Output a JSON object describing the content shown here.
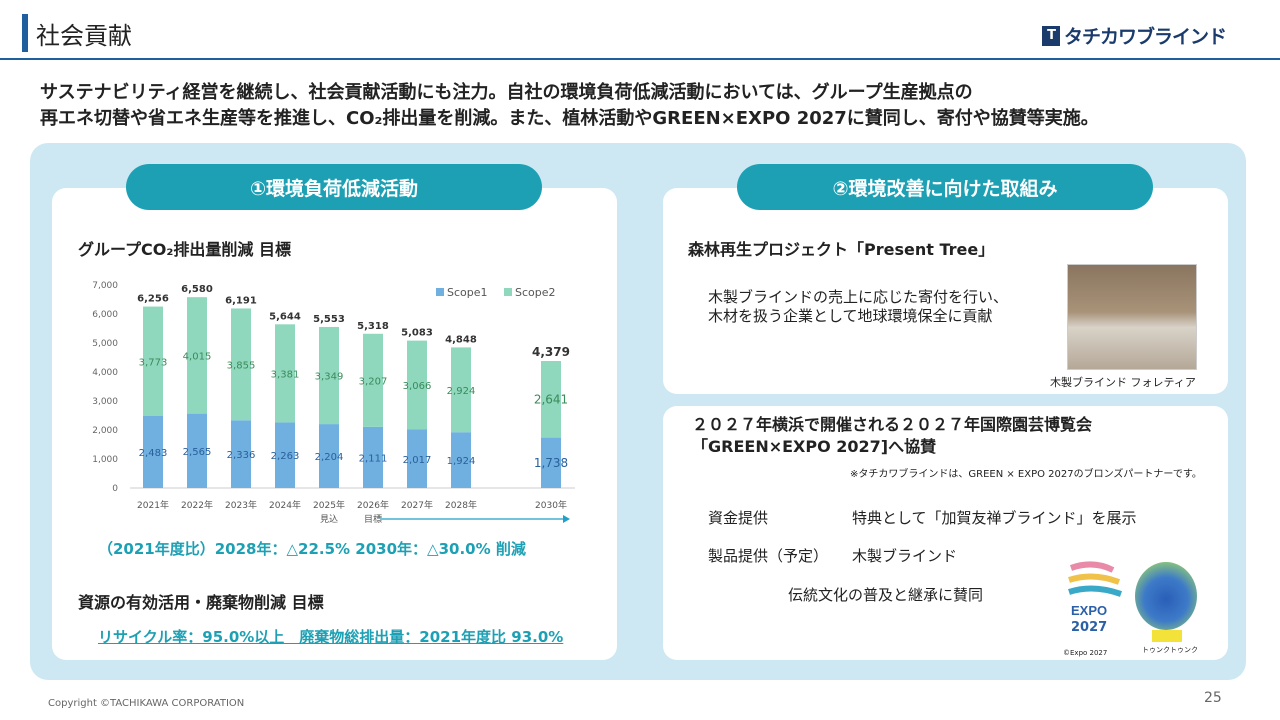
{
  "header": {
    "title": "社会貢献",
    "logo": "タチカワブラインド"
  },
  "intro": [
    "サステナビリティ経営を継続し、社会貢献活動にも注力。自社の環境負荷低減活動においては、グループ生産拠点の",
    "再エネ切替や省エネ生産等を推進し、CO₂排出量を削減。また、植林活動やGREEN×EXPO 2027に賛同し、寄付や協賛等実施。"
  ],
  "left": {
    "pill": "①環境負荷低減活動",
    "chart_title": "グループCO₂排出量削減 目標",
    "reduction": "（2021年度比）2028年：△22.5%  2030年：△30.0% 削減",
    "resource_title": "資源の有効活用・廃棄物削減 目標",
    "resource_target": "リサイクル率：95.0%以上　廃棄物総排出量：2021年度比 93.0%"
  },
  "chart_data": {
    "type": "bar",
    "stacked": true,
    "categories": [
      "2021年",
      "2022年",
      "2023年",
      "2024年",
      "2025年",
      "2026年",
      "2027年",
      "2028年",
      "2030年"
    ],
    "sublabels": [
      "",
      "",
      "",
      "",
      "見込",
      "目標",
      "",
      "",
      ""
    ],
    "series": [
      {
        "name": "Scope1",
        "color": "#6fb0e0",
        "values": [
          2483,
          2565,
          2336,
          2263,
          2204,
          2111,
          2017,
          1924,
          1738
        ]
      },
      {
        "name": "Scope2",
        "color": "#8fd8bd",
        "values": [
          3773,
          4015,
          3855,
          3381,
          3349,
          3207,
          3066,
          2924,
          2641
        ]
      }
    ],
    "totals": [
      6256,
      6580,
      6191,
      5644,
      5553,
      5318,
      5083,
      4848,
      4379
    ],
    "yticks": [
      "0",
      "1,000",
      "2,000",
      "3,000",
      "4,000",
      "5,000",
      "6,000",
      "7,000"
    ],
    "ylim": [
      0,
      7000
    ],
    "legend": "top-right",
    "grid": false
  },
  "right": {
    "pill": "②環境改善に向けた取組み",
    "project_title": "森林再生プロジェクト「Present Tree」",
    "project_desc": [
      "木製ブラインドの売上に応じた寄付を行い、",
      "木材を扱う企業として地球環境保全に貢献"
    ],
    "photo_caption": "木製ブラインド フォレティア",
    "expo_title": [
      "２０２７年横浜で開催される２０２７年国際園芸博覧会",
      "「GREEN×EXPO 2027]へ協賛"
    ],
    "expo_note": "※タチカワブラインドは、GREEN × EXPO 2027のブロンズパートナーです。",
    "rows": [
      {
        "label": "資金提供",
        "value": "特典として「加賀友禅ブラインド」を展示"
      },
      {
        "label": "製品提供（予定）",
        "value": "木製ブラインド"
      }
    ],
    "support": "伝統文化の普及と継承に賛同",
    "expo_logo": "EXPO 2027",
    "expo_credit": "©Expo 2027",
    "mascot": "トゥンクトゥンク"
  },
  "footer": {
    "copyright": "Copyright ©TACHIKAWA CORPORATION",
    "page": "25"
  }
}
